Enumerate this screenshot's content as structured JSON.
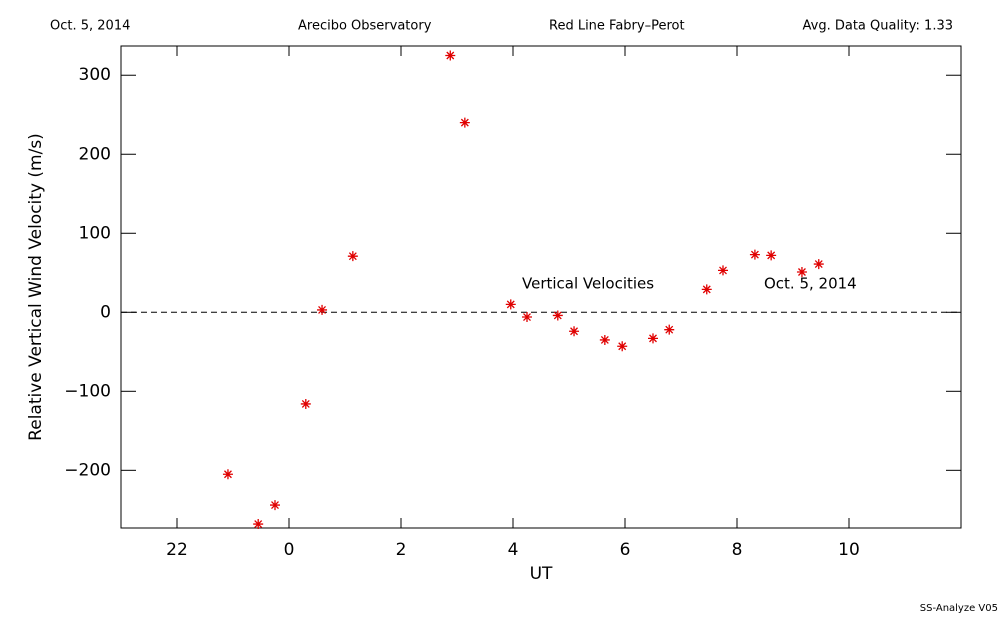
{
  "chart_data": {
    "type": "scatter",
    "header": [
      "Oct. 5, 2014",
      "Arecibo Observatory",
      "Red Line Fabry–Perot",
      "Avg. Data Quality: 1.33"
    ],
    "xlabel": "UT",
    "ylabel": "Relative Vertical Wind Velocity (m/s)",
    "annotations": [
      "Vertical Velocities",
      "Oct. 5, 2014"
    ],
    "footer": "SS-Analyze V05",
    "xlim": [
      -3,
      12
    ],
    "xticks": [
      {
        "value": -2,
        "label": "22"
      },
      0,
      2,
      4,
      6,
      8,
      10
    ],
    "ylim": [
      -273,
      337
    ],
    "yticks": [
      {
        "value": -200,
        "label": "−200"
      },
      {
        "value": -100,
        "label": "−100"
      },
      0,
      100,
      200,
      300
    ],
    "reference_line": 0,
    "color": "#e00000",
    "x": [
      -1.09,
      -0.55,
      -0.25,
      0.3,
      0.59,
      1.14,
      2.88,
      3.14,
      3.96,
      4.25,
      4.8,
      5.09,
      5.64,
      5.95,
      6.5,
      6.79,
      7.46,
      7.75,
      8.32,
      8.61,
      9.16,
      9.46
    ],
    "values": [
      -205,
      -268,
      -244,
      -116,
      3,
      71,
      325,
      240,
      10,
      -6,
      -4,
      -24,
      -35,
      -43,
      -33,
      -22,
      29,
      53,
      73,
      72,
      51,
      61
    ]
  }
}
